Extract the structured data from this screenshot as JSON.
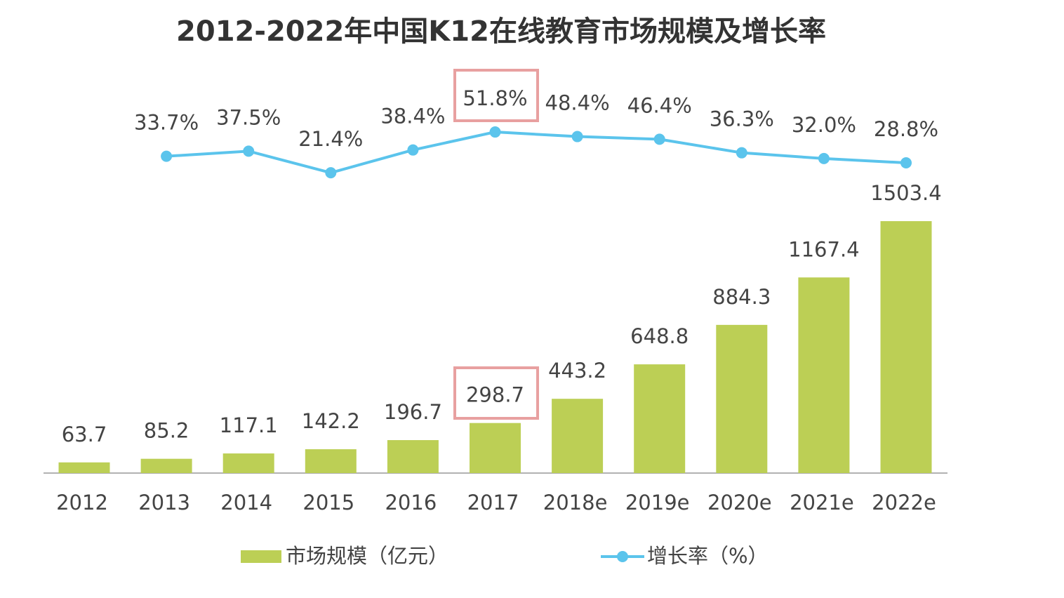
{
  "chart_data": {
    "type": "bar-line",
    "title": "2012-2022年中国K12在线教育市场规模及增长率",
    "categories": [
      "2012",
      "2013",
      "2014",
      "2015",
      "2016",
      "2017",
      "2018e",
      "2019e",
      "2020e",
      "2021e",
      "2022e"
    ],
    "series": [
      {
        "name": "市场规模（亿元）",
        "type": "bar",
        "color": "#bccf55",
        "values": [
          63.7,
          85.2,
          117.1,
          142.2,
          196.7,
          298.7,
          443.2,
          648.8,
          884.3,
          1167.4,
          1503.4
        ]
      },
      {
        "name": "增长率（%）",
        "type": "line",
        "axis": "y2",
        "color": "#5bc4ec",
        "values": [
          null,
          33.7,
          37.5,
          21.4,
          38.4,
          51.8,
          48.4,
          46.4,
          36.3,
          32.0,
          28.8
        ],
        "value_labels": [
          null,
          "33.7%",
          "37.5%",
          "21.4%",
          "38.4%",
          "51.8%",
          "48.4%",
          "46.4%",
          "36.3%",
          "32.0%",
          "28.8%"
        ]
      }
    ],
    "ylim": [
      0,
      1600
    ],
    "y2lim": [
      0,
      100
    ],
    "legend": "bottom"
  }
}
